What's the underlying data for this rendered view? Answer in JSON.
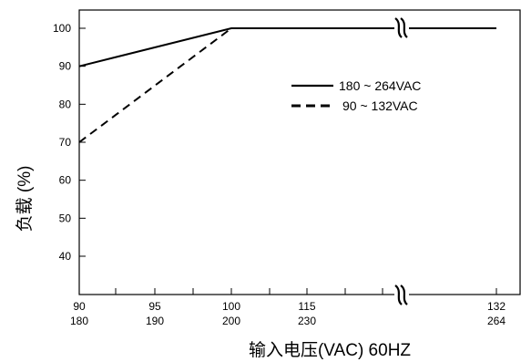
{
  "chart_data": {
    "type": "line",
    "xlabel": "输入电压(VAC) 60HZ",
    "ylabel": "负载 (%)",
    "x_ticks": [
      {
        "x": 90,
        "top": "90",
        "bottom": "180"
      },
      {
        "x": 95,
        "top": "95",
        "bottom": "190"
      },
      {
        "x": 100,
        "top": "100",
        "bottom": "200"
      },
      {
        "x": 115,
        "top": "115",
        "bottom": "230"
      },
      {
        "x": 132,
        "top": "132",
        "bottom": "264"
      }
    ],
    "y_ticks": [
      40,
      50,
      60,
      70,
      80,
      90,
      100
    ],
    "ylim": [
      30,
      105
    ],
    "x_break": "≈",
    "series": [
      {
        "name": "180 ~ 264VAC",
        "style": "solid",
        "x": [
          90,
          100,
          132
        ],
        "y": [
          90,
          100,
          100
        ]
      },
      {
        "name": "90 ~ 132VAC",
        "style": "dashed",
        "x": [
          90,
          100
        ],
        "y": [
          70,
          100
        ]
      }
    ],
    "legend_position": "upper-right",
    "grid": false
  }
}
